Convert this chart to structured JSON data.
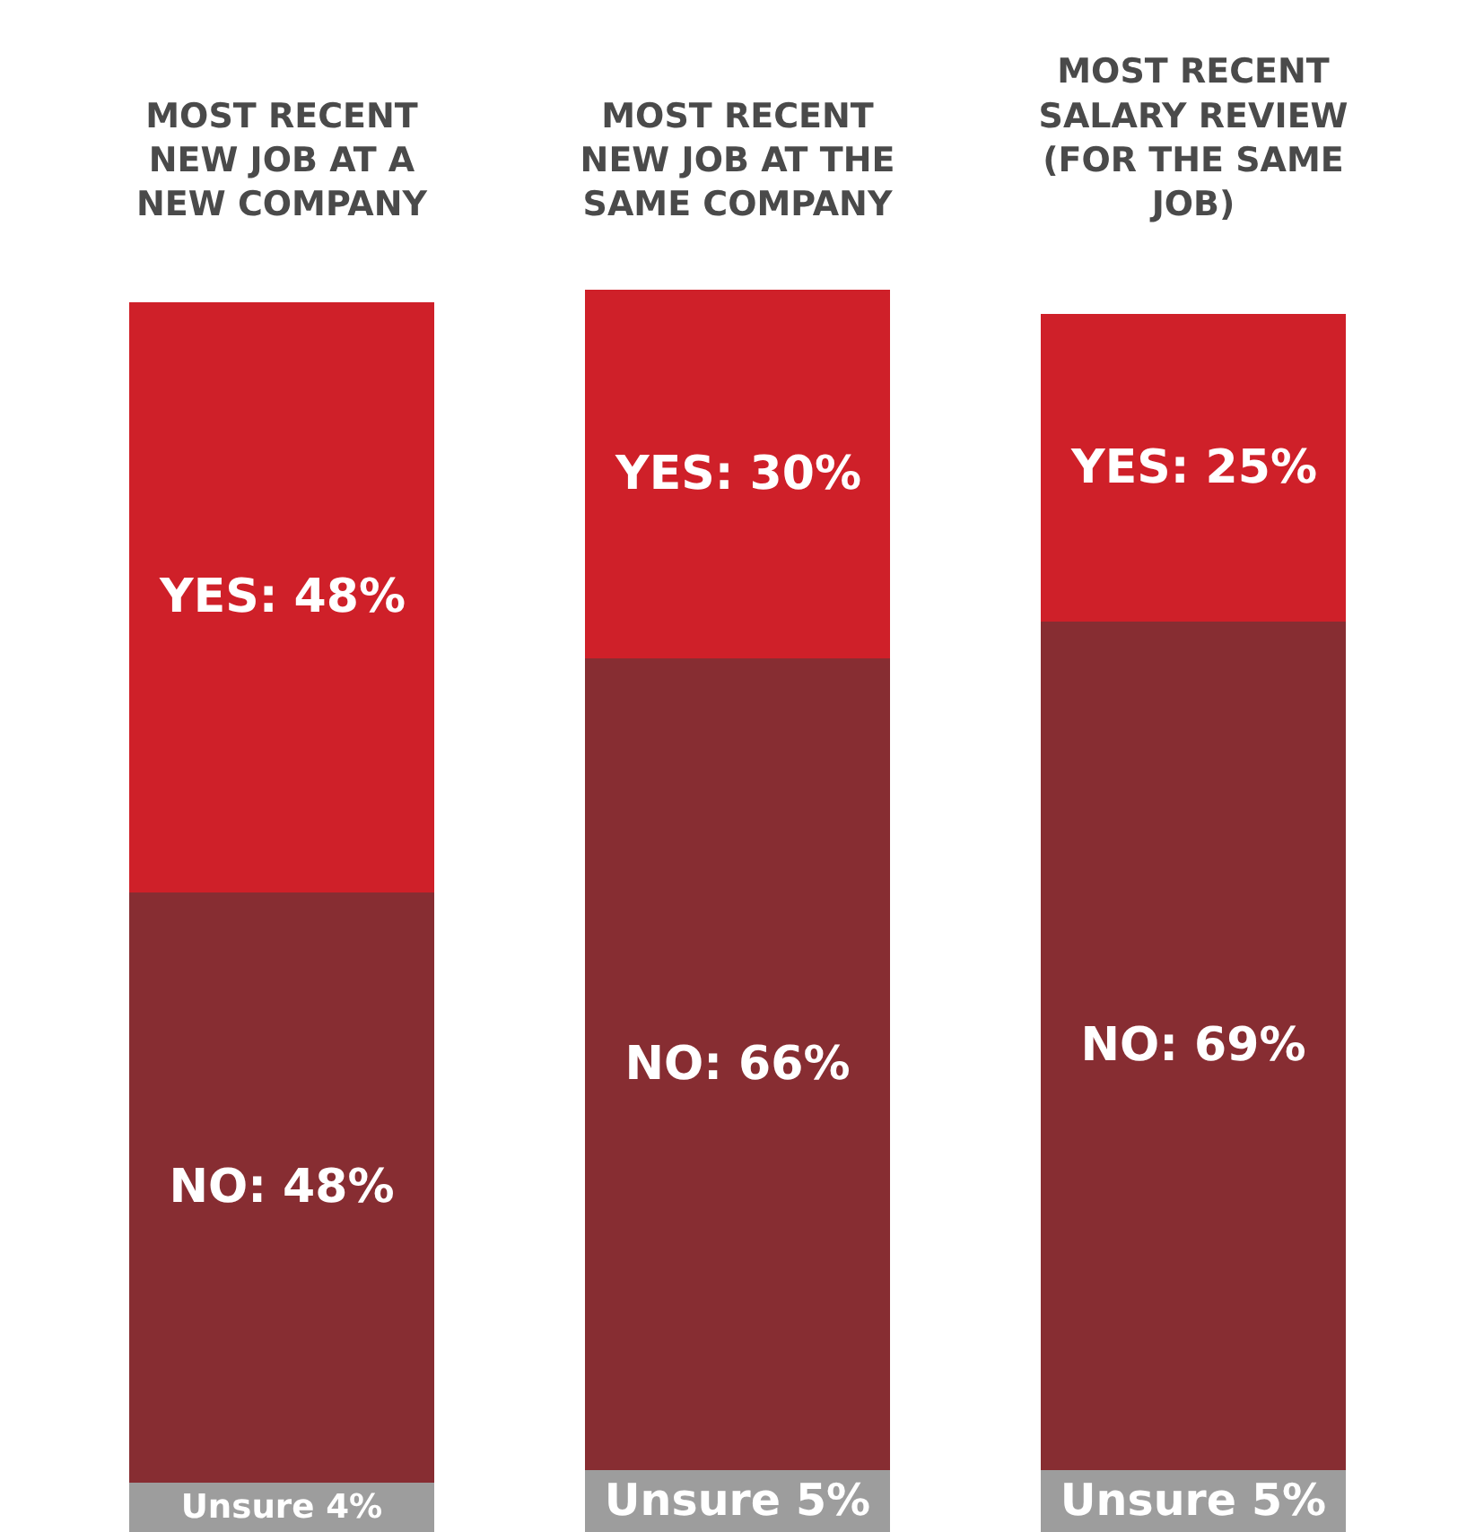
{
  "chart_data": {
    "type": "bar",
    "stacked": true,
    "tick_labels": "x",
    "legend": false,
    "categories": [
      "MOST RECENT NEW JOB AT A NEW COMPANY",
      "MOST RECENT NEW JOB AT THE SAME COMPANY",
      "MOST RECENT SALARY REVIEW (FOR THE SAME JOB)"
    ],
    "series": [
      {
        "color": "#9d9d9d",
        "values": [
          4,
          5,
          5
        ],
        "value_labels": [
          "Unsure 4%",
          "Unsure 5%",
          "Unsure 5%"
        ]
      },
      {
        "color": "#872d32",
        "values": [
          48,
          66,
          69
        ],
        "value_labels": [
          "NO: 48%",
          "NO: 66%",
          "NO: 69%"
        ]
      },
      {
        "color": "#cf2029",
        "values": [
          48,
          30,
          25
        ],
        "value_labels": [
          "YES: 48%",
          "YES: 30%",
          "YES: 25%"
        ]
      }
    ]
  }
}
